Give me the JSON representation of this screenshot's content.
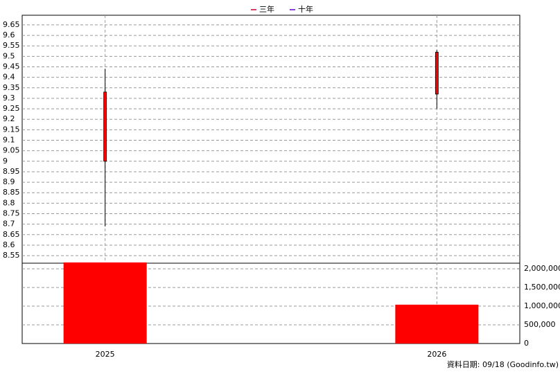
{
  "chart_data": {
    "type": "candlestick",
    "legend": [
      {
        "name": "三年",
        "color": "#cc0033"
      },
      {
        "name": "十年",
        "color": "#6600cc"
      }
    ],
    "categories": [
      "2025",
      "2026"
    ],
    "series": {
      "open": [
        9.0,
        9.32
      ],
      "high": [
        9.44,
        9.53
      ],
      "low": [
        8.69,
        9.25
      ],
      "close": [
        9.33,
        9.52
      ]
    },
    "candle_color": "#ff0000",
    "ylim": [
      8.514,
      9.696
    ],
    "yticks": [
      8.55,
      8.6,
      8.65,
      8.7,
      8.75,
      8.8,
      8.85,
      8.9,
      8.95,
      9,
      9.05,
      9.1,
      9.15,
      9.2,
      9.25,
      9.3,
      9.35,
      9.4,
      9.45,
      9.5,
      9.55,
      9.6,
      9.65
    ],
    "volume": {
      "values": [
        2170000,
        1040000
      ],
      "color": "#ff0000"
    },
    "y2lim": [
      0,
      2150000
    ],
    "y2ticks": [
      0,
      {
        "value": 500000,
        "label": "500,000"
      },
      {
        "value": 1000000,
        "label": "1,000,000"
      },
      {
        "value": 1500000,
        "label": "1,500,000"
      },
      {
        "value": 2000000,
        "label": "2,000,000"
      }
    ],
    "grid": true,
    "footnote": "資料日期: 09/18  (Goodinfo.tw)"
  }
}
